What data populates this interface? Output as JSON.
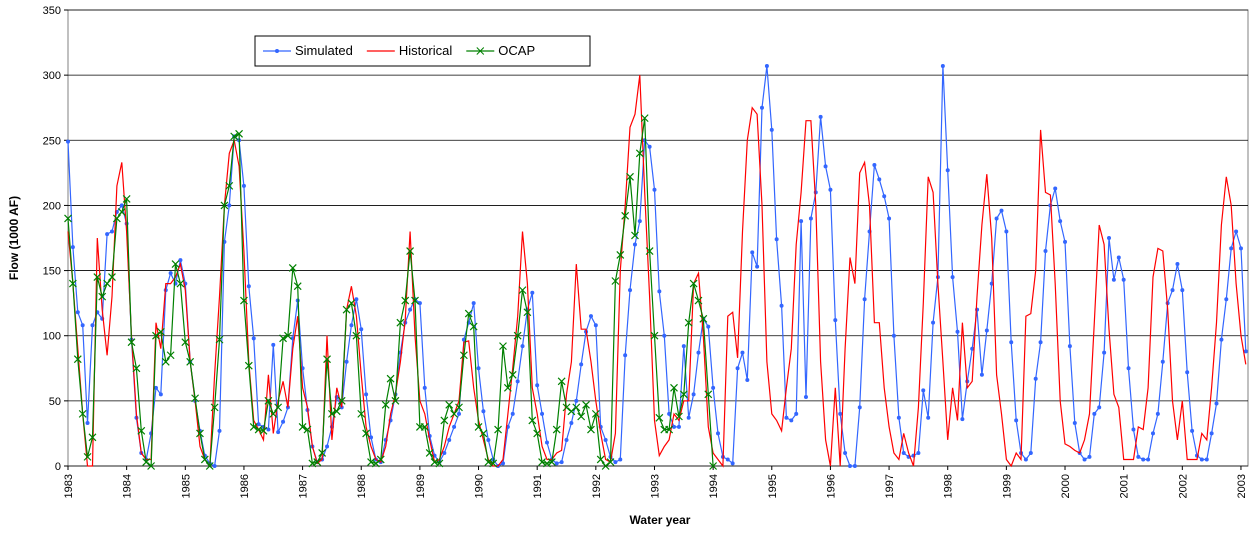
{
  "chart_data": {
    "type": "line",
    "x_label": "Water year",
    "y_label": "Flow (1000 AF)",
    "xlim": [
      1983,
      2003.12
    ],
    "ylim": [
      0,
      350
    ],
    "xticks": [
      1983,
      1984,
      1985,
      1986,
      1987,
      1988,
      1989,
      1990,
      1991,
      1992,
      1993,
      1994,
      1995,
      1996,
      1997,
      1998,
      1999,
      2000,
      2001,
      2002,
      2003
    ],
    "yticks": [
      0,
      50,
      100,
      150,
      200,
      250,
      300,
      350
    ],
    "grid": true,
    "legend": "top-left",
    "x": [
      1983,
      1983.083,
      1983.167,
      1983.25,
      1983.333,
      1983.417,
      1983.5,
      1983.583,
      1983.667,
      1983.75,
      1983.833,
      1983.917,
      1984,
      1984.083,
      1984.167,
      1984.25,
      1984.333,
      1984.417,
      1984.5,
      1984.583,
      1984.667,
      1984.75,
      1984.833,
      1984.917,
      1985,
      1985.083,
      1985.167,
      1985.25,
      1985.333,
      1985.417,
      1985.5,
      1985.583,
      1985.667,
      1985.75,
      1985.833,
      1985.917,
      1986,
      1986.083,
      1986.167,
      1986.25,
      1986.333,
      1986.417,
      1986.5,
      1986.583,
      1986.667,
      1986.75,
      1986.833,
      1986.917,
      1987,
      1987.083,
      1987.167,
      1987.25,
      1987.333,
      1987.417,
      1987.5,
      1987.583,
      1987.667,
      1987.75,
      1987.833,
      1987.917,
      1988,
      1988.083,
      1988.167,
      1988.25,
      1988.333,
      1988.417,
      1988.5,
      1988.583,
      1988.667,
      1988.75,
      1988.833,
      1988.917,
      1989,
      1989.083,
      1989.167,
      1989.25,
      1989.333,
      1989.417,
      1989.5,
      1989.583,
      1989.667,
      1989.75,
      1989.833,
      1989.917,
      1990,
      1990.083,
      1990.167,
      1990.25,
      1990.333,
      1990.417,
      1990.5,
      1990.583,
      1990.667,
      1990.75,
      1990.833,
      1990.917,
      1991,
      1991.083,
      1991.167,
      1991.25,
      1991.333,
      1991.417,
      1991.5,
      1991.583,
      1991.667,
      1991.75,
      1991.833,
      1991.917,
      1992,
      1992.083,
      1992.167,
      1992.25,
      1992.333,
      1992.417,
      1992.5,
      1992.583,
      1992.667,
      1992.75,
      1992.833,
      1992.917,
      1993,
      1993.083,
      1993.167,
      1993.25,
      1993.333,
      1993.417,
      1993.5,
      1993.583,
      1993.667,
      1993.75,
      1993.833,
      1993.917,
      1994,
      1994.083,
      1994.167,
      1994.25,
      1994.333,
      1994.417,
      1994.5,
      1994.583,
      1994.667,
      1994.75,
      1994.833,
      1994.917,
      1995,
      1995.083,
      1995.167,
      1995.25,
      1995.333,
      1995.417,
      1995.5,
      1995.583,
      1995.667,
      1995.75,
      1995.833,
      1995.917,
      1996,
      1996.083,
      1996.167,
      1996.25,
      1996.333,
      1996.417,
      1996.5,
      1996.583,
      1996.667,
      1996.75,
      1996.833,
      1996.917,
      1997,
      1997.083,
      1997.167,
      1997.25,
      1997.333,
      1997.417,
      1997.5,
      1997.583,
      1997.667,
      1997.75,
      1997.833,
      1997.917,
      1998,
      1998.083,
      1998.167,
      1998.25,
      1998.333,
      1998.417,
      1998.5,
      1998.583,
      1998.667,
      1998.75,
      1998.833,
      1998.917,
      1999,
      1999.083,
      1999.167,
      1999.25,
      1999.333,
      1999.417,
      1999.5,
      1999.583,
      1999.667,
      1999.75,
      1999.833,
      1999.917,
      2000,
      2000.083,
      2000.167,
      2000.25,
      2000.333,
      2000.417,
      2000.5,
      2000.583,
      2000.667,
      2000.75,
      2000.833,
      2000.917,
      2001,
      2001.083,
      2001.167,
      2001.25,
      2001.333,
      2001.417,
      2001.5,
      2001.583,
      2001.667,
      2001.75,
      2001.833,
      2001.917,
      2002,
      2002.083,
      2002.167,
      2002.25,
      2002.333,
      2002.417,
      2002.5,
      2002.583,
      2002.667,
      2002.75,
      2002.833,
      2002.917,
      2003,
      2003.083
    ],
    "series": [
      {
        "name": "Simulated",
        "color": "#3366ff",
        "marker": "circle",
        "values": [
          249,
          168,
          118,
          108,
          33,
          108,
          118,
          113,
          178,
          180,
          195,
          200,
          186,
          97,
          37,
          10,
          5,
          25,
          60,
          55,
          135,
          148,
          140,
          158,
          140,
          80,
          50,
          27,
          8,
          2,
          0,
          27,
          172,
          200,
          253,
          250,
          215,
          138,
          98,
          32,
          30,
          28,
          93,
          26,
          34,
          45,
          98,
          127,
          75,
          43,
          15,
          3,
          5,
          15,
          30,
          53,
          45,
          80,
          108,
          128,
          105,
          55,
          22,
          5,
          3,
          20,
          35,
          55,
          87,
          110,
          120,
          128,
          125,
          60,
          23,
          8,
          3,
          10,
          20,
          30,
          40,
          97,
          110,
          125,
          75,
          42,
          20,
          5,
          0,
          2,
          30,
          40,
          65,
          92,
          120,
          133,
          62,
          40,
          18,
          5,
          2,
          3,
          20,
          33,
          50,
          78,
          103,
          115,
          108,
          30,
          20,
          7,
          3,
          5,
          85,
          135,
          170,
          188,
          250,
          245,
          212,
          134,
          100,
          40,
          30,
          30,
          92,
          37,
          55,
          87,
          113,
          107,
          60,
          25,
          7,
          5,
          2,
          75,
          87,
          66,
          164,
          153,
          275,
          307,
          258,
          174,
          123,
          37,
          35,
          40,
          188,
          53,
          190,
          210,
          268,
          230,
          212,
          112,
          40,
          10,
          0,
          0,
          45,
          128,
          180,
          231,
          220,
          207,
          190,
          100,
          37,
          10,
          7,
          8,
          10,
          58,
          37,
          110,
          145,
          307,
          227,
          145,
          103,
          36,
          65,
          90,
          120,
          70,
          104,
          140,
          190,
          196,
          180,
          95,
          35,
          10,
          5,
          10,
          67,
          95,
          165,
          200,
          213,
          188,
          172,
          92,
          33,
          10,
          5,
          7,
          40,
          45,
          87,
          175,
          143,
          160,
          143,
          75,
          28,
          7,
          5,
          5,
          25,
          40,
          80,
          125,
          135,
          155,
          135,
          72,
          27,
          8,
          5,
          5,
          25,
          48,
          97,
          128,
          167,
          180,
          167,
          88
        ]
      },
      {
        "name": "Historical",
        "color": "#ff0000",
        "marker": "none",
        "values": [
          180,
          140,
          90,
          40,
          0,
          0,
          175,
          120,
          85,
          130,
          215,
          233,
          180,
          100,
          40,
          10,
          5,
          5,
          110,
          90,
          140,
          140,
          145,
          155,
          135,
          80,
          50,
          15,
          5,
          0,
          70,
          130,
          200,
          240,
          250,
          230,
          165,
          80,
          35,
          28,
          20,
          70,
          25,
          50,
          65,
          45,
          90,
          115,
          60,
          45,
          15,
          2,
          5,
          100,
          20,
          60,
          45,
          120,
          138,
          115,
          70,
          30,
          15,
          5,
          3,
          15,
          40,
          55,
          80,
          112,
          180,
          100,
          50,
          40,
          20,
          3,
          5,
          15,
          30,
          40,
          50,
          95,
          96,
          60,
          35,
          20,
          5,
          0,
          0,
          5,
          40,
          75,
          115,
          180,
          140,
          60,
          40,
          15,
          5,
          5,
          10,
          12,
          55,
          80,
          155,
          105,
          105,
          80,
          50,
          25,
          5,
          3,
          25,
          150,
          200,
          260,
          270,
          300,
          210,
          130,
          35,
          8,
          15,
          20,
          40,
          35,
          50,
          50,
          140,
          148,
          100,
          30,
          10,
          5,
          0,
          115,
          118,
          83,
          180,
          250,
          275,
          270,
          200,
          80,
          40,
          35,
          27,
          60,
          90,
          170,
          210,
          265,
          265,
          200,
          80,
          20,
          0,
          60,
          0,
          90,
          160,
          140,
          225,
          233,
          200,
          110,
          110,
          60,
          30,
          10,
          5,
          25,
          10,
          0,
          45,
          125,
          222,
          210,
          140,
          80,
          20,
          60,
          35,
          110,
          60,
          65,
          130,
          185,
          224,
          175,
          70,
          40,
          5,
          0,
          10,
          5,
          115,
          117,
          150,
          258,
          210,
          208,
          140,
          50,
          17,
          15,
          12,
          10,
          20,
          40,
          110,
          185,
          170,
          105,
          55,
          45,
          5,
          5,
          5,
          30,
          28,
          60,
          145,
          167,
          165,
          120,
          50,
          20,
          50,
          5,
          5,
          5,
          25,
          20,
          60,
          110,
          185,
          222,
          200,
          140,
          100,
          78
        ]
      },
      {
        "name": "OCAP",
        "color": "#008000",
        "marker": "x",
        "values": [
          190,
          140,
          82,
          40,
          7,
          22,
          145,
          130,
          140,
          145,
          190,
          195,
          205,
          95,
          75,
          27,
          3,
          0,
          100,
          103,
          80,
          85,
          155,
          140,
          95,
          80,
          52,
          25,
          5,
          0,
          45,
          97,
          200,
          215,
          253,
          255,
          127,
          77,
          30,
          28,
          27,
          50,
          40,
          45,
          98,
          100,
          152,
          138,
          30,
          28,
          2,
          3,
          10,
          82,
          40,
          42,
          50,
          120,
          125,
          100,
          40,
          25,
          3,
          2,
          5,
          47,
          67,
          50,
          110,
          127,
          165,
          127,
          30,
          30,
          10,
          3,
          2,
          35,
          47,
          40,
          45,
          85,
          117,
          107,
          30,
          25,
          3,
          2,
          28,
          92,
          60,
          70,
          100,
          135,
          118,
          35,
          25,
          3,
          2,
          3,
          28,
          65,
          45,
          42,
          45,
          38,
          47,
          28,
          40,
          5,
          0,
          3,
          142,
          162,
          192,
          222,
          177,
          240,
          267,
          165,
          100,
          37,
          28,
          28,
          60,
          38,
          55,
          110,
          140,
          127,
          113,
          55,
          0,
          null,
          null,
          null,
          null,
          null,
          null,
          null,
          null,
          null,
          null,
          null,
          null,
          null,
          null,
          null,
          null,
          null,
          null,
          null,
          null,
          null,
          null,
          null,
          null,
          null,
          null,
          null,
          null,
          null,
          null,
          null,
          null,
          null,
          null,
          null,
          null,
          null,
          null,
          null,
          null,
          null,
          null,
          null,
          null,
          null,
          null,
          null,
          null,
          null,
          null,
          null,
          null,
          null,
          null,
          null,
          null,
          null,
          null,
          null,
          null,
          null,
          null,
          null,
          null,
          null,
          null,
          null,
          null,
          null,
          null,
          null,
          null,
          null,
          null,
          null,
          null,
          null,
          null,
          null,
          null,
          null,
          null,
          null,
          null,
          null,
          null,
          null,
          null,
          null,
          null,
          null,
          null,
          null,
          null,
          null,
          null,
          null,
          null,
          null,
          null,
          null,
          null,
          null,
          null,
          null,
          null,
          null,
          null,
          null
        ]
      }
    ]
  }
}
